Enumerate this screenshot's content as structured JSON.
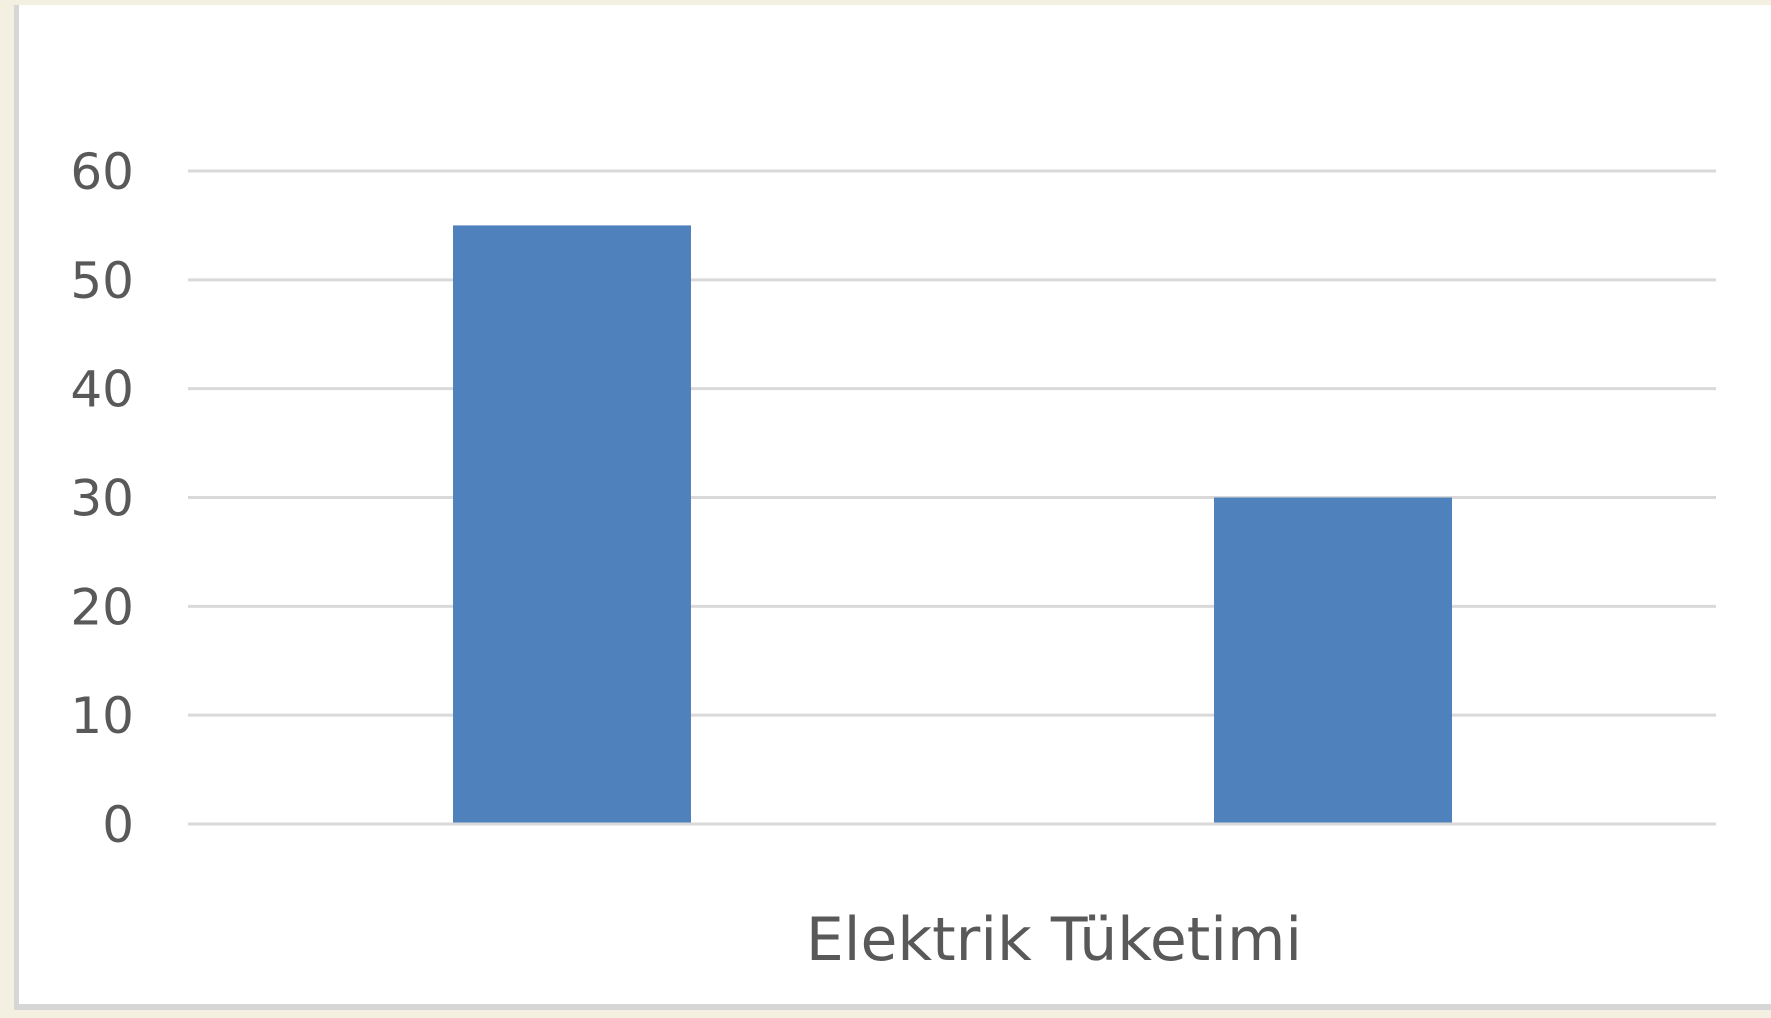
{
  "chart_data": {
    "type": "bar",
    "categories": [
      "",
      ""
    ],
    "values": [
      55,
      30
    ],
    "xlabel": "Elektrik Tüketimi",
    "ylabel": "",
    "ylim": [
      0,
      60
    ],
    "yticks": [
      0,
      10,
      20,
      30,
      40,
      50,
      60
    ],
    "grid": true,
    "legend": "none",
    "colors": {
      "bar": "#4f81bd",
      "grid": "#d9d9d9",
      "text": "#595959"
    }
  }
}
